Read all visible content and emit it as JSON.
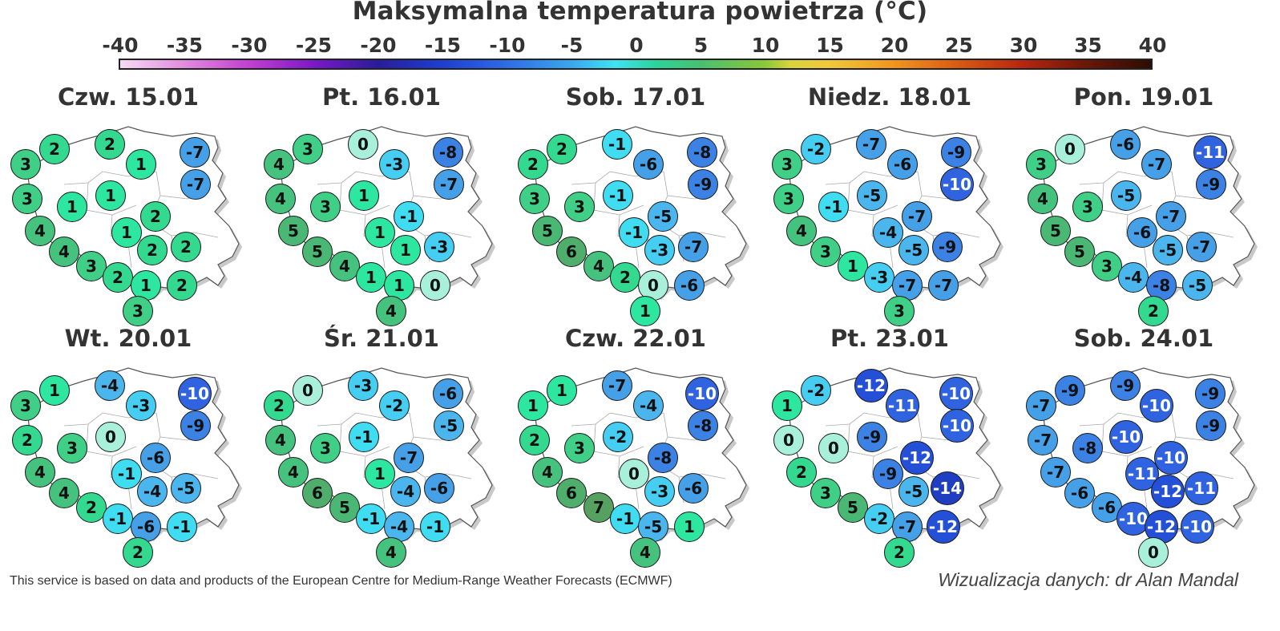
{
  "title": "Maksymalna temperatura powietrza (°C)",
  "scale": {
    "ticks": [
      "-40",
      "-35",
      "-30",
      "-25",
      "-20",
      "-15",
      "-10",
      "-5",
      "0",
      "5",
      "10",
      "15",
      "20",
      "25",
      "30",
      "35",
      "40"
    ],
    "min": -40,
    "max": 40
  },
  "panels": [
    {
      "label": "Czw. 15.01",
      "values": [
        "3",
        "2",
        "2",
        "1",
        "-7",
        "-7",
        "3",
        "1",
        "1",
        "2",
        "4",
        "1",
        "4",
        "3",
        "2",
        "2",
        "2",
        "1",
        "2",
        "3"
      ]
    },
    {
      "label": "Pt. 16.01",
      "values": [
        "4",
        "3",
        "0",
        "-3",
        "-8",
        "-7",
        "4",
        "3",
        "1",
        "-1",
        "5",
        "1",
        "5",
        "4",
        "1",
        "-3",
        "1",
        "1",
        "0",
        "4"
      ]
    },
    {
      "label": "Sob. 17.01",
      "values": [
        "2",
        "2",
        "-1",
        "-6",
        "-8",
        "-9",
        "3",
        "3",
        "-1",
        "-5",
        "5",
        "-1",
        "6",
        "4",
        "-3",
        "-7",
        "2",
        "0",
        "-6",
        "1"
      ]
    },
    {
      "label": "Niedz. 18.01",
      "values": [
        "3",
        "-2",
        "-7",
        "-6",
        "-9",
        "-10",
        "3",
        "-1",
        "-5",
        "-7",
        "4",
        "-4",
        "3",
        "1",
        "-5",
        "-9",
        "-3",
        "-7",
        "-7",
        "3"
      ]
    },
    {
      "label": "Pon. 19.01",
      "values": [
        "3",
        "0",
        "-6",
        "-7",
        "-11",
        "-9",
        "4",
        "3",
        "-5",
        "-7",
        "5",
        "-6",
        "5",
        "3",
        "-5",
        "-7",
        "-4",
        "-8",
        "-5",
        "2"
      ]
    },
    {
      "label": "Wt. 20.01",
      "values": [
        "3",
        "1",
        "-4",
        "-3",
        "-10",
        "-9",
        "2",
        "3",
        "0",
        "-6",
        "4",
        "-1",
        "4",
        "2",
        "-4",
        "-5",
        "-1",
        "-6",
        "-1",
        "2"
      ]
    },
    {
      "label": "Śr. 21.01",
      "values": [
        "2",
        "0",
        "-3",
        "-2",
        "-6",
        "-5",
        "4",
        "3",
        "-1",
        "-7",
        "4",
        "1",
        "6",
        "5",
        "-4",
        "-6",
        "-1",
        "-4",
        "-1",
        "4"
      ]
    },
    {
      "label": "Czw. 22.01",
      "values": [
        "1",
        "1",
        "-7",
        "-4",
        "-10",
        "-8",
        "2",
        "3",
        "-2",
        "-8",
        "4",
        "0",
        "6",
        "7",
        "-3",
        "-6",
        "-1",
        "-5",
        "1",
        "4"
      ]
    },
    {
      "label": "Pt. 23.01",
      "values": [
        "1",
        "-2",
        "-12",
        "-11",
        "-10",
        "-10",
        "0",
        "0",
        "-9",
        "-12",
        "2",
        "-9",
        "3",
        "5",
        "-5",
        "-14",
        "-2",
        "-7",
        "-12",
        "2"
      ]
    },
    {
      "label": "Sob. 24.01",
      "values": [
        "-7",
        "-9",
        "-9",
        "-10",
        "-9",
        "-9",
        "-7",
        "-8",
        "-10",
        "-10",
        "-7",
        "-11",
        "-6",
        "-6",
        "-12",
        "-11",
        "-10",
        "-12",
        "-10",
        "0"
      ]
    }
  ],
  "credit": "This service is based on data and products of the European Centre for Medium-Range Weather Forecasts (ECMWF)",
  "author": "Wizualizacja danych: dr Alan Mandal"
}
